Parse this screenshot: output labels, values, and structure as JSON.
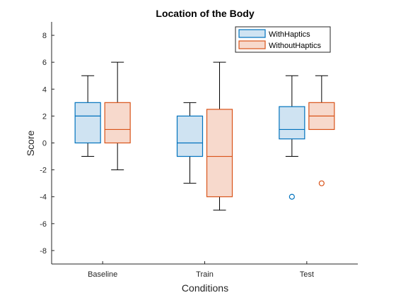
{
  "chart_data": {
    "type": "box",
    "title": "Location of the Body",
    "xlabel": "Conditions",
    "ylabel": "Score",
    "categories": [
      "Baseline",
      "Train",
      "Test"
    ],
    "ylim": [
      -9,
      9
    ],
    "yticks": [
      -8,
      -6,
      -4,
      -2,
      0,
      2,
      4,
      6,
      8
    ],
    "grid": false,
    "legend_position": "top-right",
    "series": [
      {
        "name": "WithHaptics",
        "edge_color": "#0072BD",
        "fill_color": "#cfe3f2",
        "boxes": [
          {
            "whisker_low": -1,
            "q1": 0,
            "median": 2,
            "q3": 3,
            "whisker_high": 5,
            "outliers": []
          },
          {
            "whisker_low": -3,
            "q1": -1,
            "median": 0,
            "q3": 2,
            "whisker_high": 3,
            "outliers": []
          },
          {
            "whisker_low": -1,
            "q1": 0.3,
            "median": 1,
            "q3": 2.7,
            "whisker_high": 5,
            "outliers": [
              -4
            ]
          }
        ]
      },
      {
        "name": "WithoutHaptics",
        "edge_color": "#D95319",
        "fill_color": "#f7d9cc",
        "boxes": [
          {
            "whisker_low": -2,
            "q1": 0,
            "median": 1,
            "q3": 3,
            "whisker_high": 6,
            "outliers": []
          },
          {
            "whisker_low": -5,
            "q1": -4,
            "median": -1,
            "q3": 2.5,
            "whisker_high": 6,
            "outliers": []
          },
          {
            "whisker_low": 1,
            "q1": 1,
            "median": 2,
            "q3": 3,
            "whisker_high": 5,
            "outliers": [
              -3
            ]
          }
        ]
      }
    ]
  }
}
